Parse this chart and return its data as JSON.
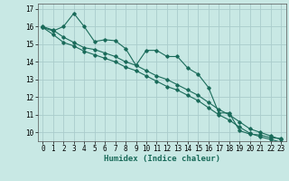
{
  "xlabel": "Humidex (Indice chaleur)",
  "ylabel": "",
  "bg_color": "#c8e8e4",
  "line_color": "#1a6b5a",
  "grid_color": "#aacccc",
  "xlim": [
    -0.5,
    23.5
  ],
  "ylim": [
    9.5,
    17.3
  ],
  "yticks": [
    10,
    11,
    12,
    13,
    14,
    15,
    16,
    17
  ],
  "xticks": [
    0,
    1,
    2,
    3,
    4,
    5,
    6,
    7,
    8,
    9,
    10,
    11,
    12,
    13,
    14,
    15,
    16,
    17,
    18,
    19,
    20,
    21,
    22,
    23
  ],
  "line1_x": [
    0,
    1,
    2,
    3,
    4,
    5,
    6,
    7,
    8,
    9,
    10,
    11,
    12,
    13,
    14,
    15,
    16,
    17,
    18,
    19,
    20,
    21,
    22,
    23
  ],
  "line1_y": [
    15.95,
    15.75,
    16.0,
    16.75,
    16.0,
    15.15,
    15.25,
    15.2,
    14.75,
    13.8,
    14.65,
    14.65,
    14.3,
    14.3,
    13.65,
    13.3,
    12.55,
    11.1,
    11.1,
    10.1,
    9.9,
    9.85,
    9.7,
    9.65
  ],
  "line2_x": [
    0,
    1,
    2,
    3,
    4,
    5,
    6,
    7,
    8,
    9,
    10,
    11,
    12,
    13,
    14,
    15,
    16,
    17,
    18,
    19,
    20,
    21,
    22,
    23
  ],
  "line2_y": [
    16.0,
    15.8,
    15.4,
    15.1,
    14.8,
    14.7,
    14.5,
    14.3,
    14.0,
    13.8,
    13.5,
    13.2,
    13.0,
    12.7,
    12.4,
    12.1,
    11.7,
    11.3,
    11.0,
    10.6,
    10.2,
    10.0,
    9.8,
    9.6
  ],
  "line3_x": [
    0,
    1,
    2,
    3,
    4,
    5,
    6,
    7,
    8,
    9,
    10,
    11,
    12,
    13,
    14,
    15,
    16,
    17,
    18,
    19,
    20,
    21,
    22,
    23
  ],
  "line3_y": [
    15.95,
    15.55,
    15.1,
    14.9,
    14.6,
    14.4,
    14.2,
    14.0,
    13.7,
    13.5,
    13.2,
    12.9,
    12.6,
    12.4,
    12.1,
    11.8,
    11.4,
    11.0,
    10.7,
    10.3,
    9.95,
    9.75,
    9.6,
    9.45
  ]
}
